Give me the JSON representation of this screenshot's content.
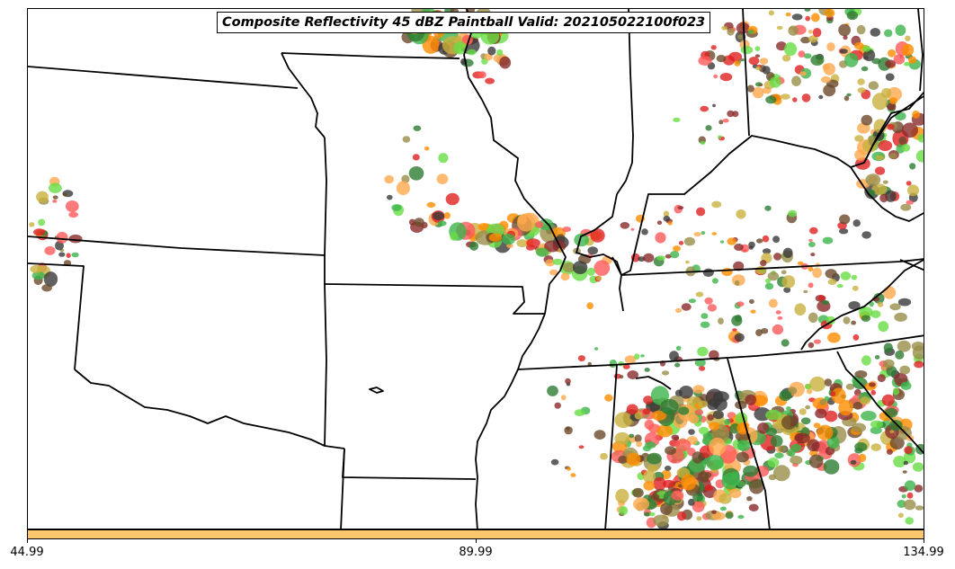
{
  "title": "Composite Reflectivity 45 dBZ Paintball Valid: 202105022100f023",
  "colorbar": {
    "color": "#ffc76b",
    "ticks": [
      "44.99",
      "89.99",
      "134.99"
    ],
    "values": [
      44.99,
      89.99,
      134.99
    ]
  },
  "paintball_colors": [
    "#e02020",
    "#ff8c00",
    "#3cb44b",
    "#9a8f4a",
    "#8b2a2a",
    "#2e7d32",
    "#c9b03e",
    "#3a3a3a",
    "#ff5a5a",
    "#66dd44",
    "#ffa94d",
    "#6b4a2a"
  ],
  "map_features": [
    "state-boundaries",
    "paintball-blobs"
  ]
}
